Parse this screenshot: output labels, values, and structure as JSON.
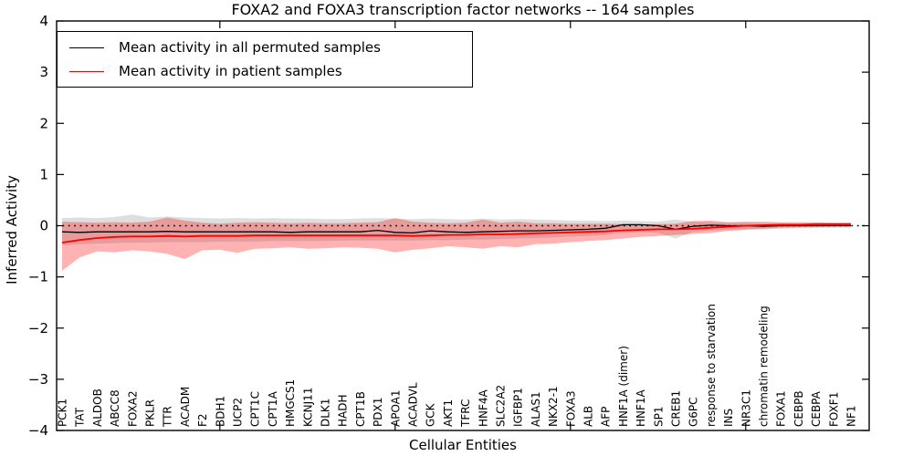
{
  "chart_data": {
    "type": "line",
    "title": "FOXA2 and FOXA3 transcription factor networks -- 164 samples",
    "xlabel": "Cellular Entities",
    "ylabel": "Inferred Activity",
    "ylim": [
      -4,
      4
    ],
    "grid": false,
    "legend": {
      "position": "upper-left",
      "items": [
        {
          "label": "Mean activity in all permuted samples",
          "color": "#000000"
        },
        {
          "label": "Mean activity in patient samples",
          "color": "#ff0000"
        }
      ]
    },
    "zero_line": {
      "style": "dotted",
      "color": "#000000",
      "y": 0
    },
    "yticks": [
      {
        "value": -4,
        "label": "−4"
      },
      {
        "value": -3,
        "label": "−3"
      },
      {
        "value": -2,
        "label": "−2"
      },
      {
        "value": -1,
        "label": "−1"
      },
      {
        "value": 0,
        "label": "0"
      },
      {
        "value": 1,
        "label": "1"
      },
      {
        "value": 2,
        "label": "2"
      },
      {
        "value": 3,
        "label": "3"
      },
      {
        "value": 4,
        "label": "4"
      }
    ],
    "x_major_tick_indices": [
      9,
      19,
      29,
      39
    ],
    "categories": [
      "PCK1",
      "TAT",
      "ALDOB",
      "ABCC8",
      "FOXA2",
      "PKLR",
      "TTR",
      "ACADM",
      "F2",
      "BDH1",
      "UCP2",
      "CPT1C",
      "CPT1A",
      "HMGCS1",
      "KCNJ11",
      "DLK1",
      "HADH",
      "CPT1B",
      "PDX1",
      "APOA1",
      "ACADVL",
      "GCK",
      "AKT1",
      "TFRC",
      "HNF4A",
      "SLC2A2",
      "IGFBP1",
      "ALAS1",
      "NKX2-1",
      "FOXA3",
      "ALB",
      "AFP",
      "HNF1A (dimer)",
      "HNF1A",
      "SP1",
      "CREB1",
      "G6PC",
      "response to starvation",
      "INS",
      "NR3C1",
      "chromatin remodeling",
      "FOXA1",
      "CEBPB",
      "CEBPA",
      "FOXF1",
      "NF1"
    ],
    "series": [
      {
        "id": "permuted",
        "name": "Mean activity in all permuted samples",
        "color": "#000000",
        "width": 1.3,
        "values": [
          -0.12,
          -0.13,
          -0.12,
          -0.12,
          -0.12,
          -0.12,
          -0.11,
          -0.12,
          -0.12,
          -0.12,
          -0.12,
          -0.12,
          -0.12,
          -0.13,
          -0.12,
          -0.12,
          -0.12,
          -0.12,
          -0.09,
          -0.13,
          -0.14,
          -0.1,
          -0.12,
          -0.13,
          -0.12,
          -0.11,
          -0.1,
          -0.1,
          -0.09,
          -0.08,
          -0.07,
          -0.05,
          0.02,
          0.02,
          0.0,
          -0.07,
          -0.01,
          0.01,
          0.0,
          0.0,
          -0.01,
          0.0,
          0.0,
          0.0,
          0.0,
          0.0
        ]
      },
      {
        "id": "patient",
        "name": "Mean activity in patient samples",
        "color": "#ff0000",
        "width": 1.8,
        "values": [
          -0.33,
          -0.28,
          -0.24,
          -0.22,
          -0.21,
          -0.21,
          -0.2,
          -0.21,
          -0.2,
          -0.2,
          -0.2,
          -0.19,
          -0.19,
          -0.19,
          -0.19,
          -0.19,
          -0.19,
          -0.19,
          -0.19,
          -0.19,
          -0.2,
          -0.19,
          -0.18,
          -0.18,
          -0.17,
          -0.17,
          -0.16,
          -0.15,
          -0.14,
          -0.13,
          -0.12,
          -0.11,
          -0.09,
          -0.08,
          -0.07,
          -0.07,
          -0.06,
          -0.04,
          -0.02,
          0.0,
          0.01,
          0.02,
          0.02,
          0.03,
          0.03,
          0.03
        ]
      }
    ],
    "bands": [
      {
        "id": "permuted",
        "color": "#000000",
        "opacity": 0.13,
        "upper": [
          0.15,
          0.16,
          0.15,
          0.17,
          0.22,
          0.16,
          0.18,
          0.16,
          0.15,
          0.14,
          0.15,
          0.14,
          0.15,
          0.14,
          0.14,
          0.13,
          0.13,
          0.14,
          0.15,
          0.14,
          0.13,
          0.14,
          0.13,
          0.12,
          0.14,
          0.12,
          0.13,
          0.12,
          0.11,
          0.1,
          0.1,
          0.09,
          0.1,
          0.09,
          0.08,
          0.12,
          0.08,
          0.07,
          0.06,
          0.06,
          0.05,
          0.05,
          0.04,
          0.04,
          0.04,
          0.03
        ],
        "lower": [
          -0.38,
          -0.36,
          -0.35,
          -0.34,
          -0.33,
          -0.33,
          -0.32,
          -0.32,
          -0.32,
          -0.31,
          -0.31,
          -0.31,
          -0.3,
          -0.3,
          -0.3,
          -0.3,
          -0.29,
          -0.29,
          -0.29,
          -0.29,
          -0.29,
          -0.28,
          -0.28,
          -0.27,
          -0.27,
          -0.26,
          -0.25,
          -0.24,
          -0.23,
          -0.21,
          -0.2,
          -0.18,
          -0.14,
          -0.12,
          -0.14,
          -0.25,
          -0.12,
          -0.09,
          -0.08,
          -0.07,
          -0.07,
          -0.06,
          -0.05,
          -0.05,
          -0.04,
          -0.04
        ]
      },
      {
        "id": "patient",
        "color": "#ff0000",
        "opacity": 0.3,
        "upper": [
          0.08,
          0.07,
          0.06,
          0.07,
          0.06,
          0.08,
          0.16,
          0.1,
          0.06,
          0.04,
          0.06,
          0.07,
          0.06,
          0.05,
          0.06,
          0.05,
          0.05,
          0.06,
          0.07,
          0.15,
          0.08,
          0.06,
          0.05,
          0.06,
          0.12,
          0.06,
          0.08,
          0.05,
          0.05,
          0.04,
          0.04,
          0.04,
          0.03,
          0.03,
          0.03,
          0.04,
          0.09,
          0.1,
          0.07,
          0.08,
          0.08,
          0.07,
          0.07,
          0.07,
          0.06,
          0.06
        ],
        "lower": [
          -0.88,
          -0.62,
          -0.5,
          -0.52,
          -0.48,
          -0.5,
          -0.55,
          -0.65,
          -0.48,
          -0.47,
          -0.53,
          -0.45,
          -0.44,
          -0.42,
          -0.45,
          -0.44,
          -0.42,
          -0.43,
          -0.45,
          -0.52,
          -0.47,
          -0.44,
          -0.4,
          -0.42,
          -0.45,
          -0.4,
          -0.42,
          -0.36,
          -0.35,
          -0.32,
          -0.3,
          -0.28,
          -0.25,
          -0.22,
          -0.2,
          -0.18,
          -0.16,
          -0.14,
          -0.1,
          -0.08,
          -0.06,
          -0.04,
          -0.03,
          -0.02,
          -0.01,
          0.0
        ]
      }
    ]
  }
}
